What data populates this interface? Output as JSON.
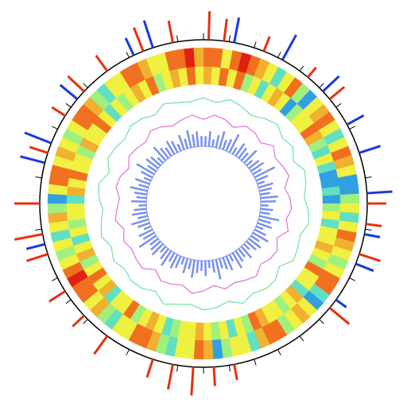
{
  "chart_data": [
    {
      "type": "ring",
      "xlim": [
        0,
        100
      ],
      "xticks": [
        0,
        2.5,
        5,
        7.5,
        10,
        12.5,
        15,
        17.5,
        20,
        22.5,
        25,
        27.5,
        30,
        32.5,
        35,
        37.5,
        40,
        42.5,
        45,
        47.5,
        50,
        52.5,
        55,
        57.5,
        60,
        62.5,
        65,
        67.5,
        70,
        72.5,
        75,
        77.5,
        80,
        82.5,
        85,
        87.5,
        90,
        92.5,
        95,
        97.5
      ],
      "color": "#000000"
    },
    {
      "type": "spike",
      "xlim": [
        0,
        100
      ],
      "ylim": [
        0,
        1
      ],
      "color": "#e83010",
      "x": [
        0.5,
        2,
        6,
        11,
        14,
        25,
        27,
        30,
        36,
        47,
        49,
        51,
        53,
        55,
        60,
        63,
        66,
        70,
        72,
        75,
        80,
        84,
        87,
        90,
        94,
        97
      ],
      "values": [
        0.9,
        0.7,
        0.5,
        0.4,
        0.6,
        0.6,
        0.5,
        0.7,
        0.8,
        0.5,
        0.6,
        0.9,
        0.8,
        0.6,
        0.7,
        0.5,
        0.6,
        0.7,
        0.9,
        0.8,
        0.6,
        0.5,
        0.7,
        0.6,
        0.8,
        0.7
      ]
    },
    {
      "type": "spike",
      "xlim": [
        0,
        100
      ],
      "ylim": [
        0,
        1
      ],
      "color": "#1838e0",
      "x": [
        3,
        8,
        13,
        17,
        20,
        24,
        28,
        31,
        35,
        71,
        79,
        81,
        86,
        93,
        95
      ],
      "values": [
        0.8,
        0.9,
        0.7,
        0.6,
        0.7,
        0.8,
        0.5,
        0.6,
        0.4,
        0.6,
        0.8,
        0.9,
        0.7,
        0.6,
        0.9
      ]
    },
    {
      "type": "heatmap",
      "xlim": [
        0,
        100
      ],
      "ylim": [
        0,
        1
      ],
      "colors": [
        "#2040d0",
        "#30a0e0",
        "#60e0c0",
        "#a0f080",
        "#f0f040",
        "#f0b030",
        "#f07020",
        "#e02010"
      ],
      "values": [
        0.9,
        0.8,
        0.6,
        0.9,
        1,
        0.9,
        0.7,
        0.5,
        0.3,
        0.6,
        0.8,
        0.4,
        0.2,
        0.5,
        0.7,
        0.9,
        0.6,
        0.3,
        0.5,
        0.8,
        0.7,
        0.6,
        0.2,
        0.1,
        0.4,
        0.5,
        0.3,
        0.6,
        0.8,
        0.7,
        0.5,
        0.4,
        0.6,
        0.9,
        0.8,
        0.3,
        0.2,
        0.5,
        0.7,
        0.6,
        0.4,
        0.8,
        0.9,
        0.7,
        0.3,
        0.5,
        0.6,
        0.4,
        0.2,
        0.7,
        0.8,
        0.6,
        0.5,
        0.3,
        0.4,
        0.7,
        0.9,
        0.8,
        0.5,
        0.6,
        0.3,
        0.4,
        0.7,
        0.5,
        0.8,
        0.9,
        1,
        0.8,
        0.6,
        0.4,
        0.5,
        0.3,
        0.6,
        0.7,
        0.4,
        0.2,
        0.5,
        0.8,
        0.9,
        0.6,
        0.7,
        0.5,
        0.4,
        0.6,
        0.8,
        0.9,
        0.7,
        0.4,
        0.3,
        0.5,
        0.6,
        0.8,
        0.9,
        0.7,
        0.5,
        0.6,
        0.8,
        0.9,
        1,
        0.7
      ]
    },
    {
      "type": "heatmap",
      "xlim": [
        0,
        100
      ],
      "ylim": [
        0,
        1
      ],
      "colors": [
        "#2040d0",
        "#30a0e0",
        "#60e0c0",
        "#a0f080",
        "#f0f040",
        "#f0b030",
        "#f07020",
        "#e02010"
      ],
      "values": [
        0.7,
        0.5,
        0.8,
        0.6,
        0.9,
        0.4,
        0.6,
        0.3,
        0.5,
        0.7,
        0.6,
        0.2,
        0.4,
        0.6,
        0.5,
        0.8,
        0.7,
        0.4,
        0.3,
        0.6,
        0.3,
        0.2,
        0.1,
        0.3,
        0.2,
        0.4,
        0.5,
        0.3,
        0.6,
        0.5,
        0.7,
        0.6,
        0.4,
        0.8,
        0.5,
        0.6,
        0.3,
        0.7,
        0.5,
        0.4,
        0.6,
        0.5,
        0.7,
        0.8,
        0.4,
        0.6,
        0.3,
        0.5,
        0.4,
        0.6,
        0.7,
        0.5,
        0.6,
        0.4,
        0.3,
        0.5,
        0.7,
        0.6,
        0.4,
        0.8,
        0.5,
        0.6,
        0.3,
        0.7,
        0.6,
        0.8,
        0.5,
        0.4,
        0.7,
        0.6,
        0.3,
        0.5,
        0.4,
        0.6,
        0.5,
        0.3,
        0.7,
        0.6,
        0.8,
        0.5,
        0.6,
        0.4,
        0.7,
        0.5,
        0.6,
        0.8,
        0.5,
        0.3,
        0.6,
        0.4,
        0.5,
        0.7,
        0.6,
        0.8,
        0.4,
        0.5,
        0.7,
        0.6,
        0.9,
        0.5
      ]
    },
    {
      "type": "line",
      "xlim": [
        0,
        100
      ],
      "ylim": [
        -1,
        1
      ],
      "color": "#70e0a0",
      "x": [
        0,
        2,
        4,
        6,
        8,
        10,
        12,
        14,
        16,
        18,
        20,
        22,
        24,
        26,
        28,
        30,
        32,
        34,
        36,
        38,
        40,
        42,
        44,
        46,
        48,
        50,
        52,
        54,
        56,
        58,
        60,
        62,
        64,
        66,
        68,
        70,
        72,
        74,
        76,
        78,
        80,
        82,
        84,
        86,
        88,
        90,
        92,
        94,
        96,
        98
      ],
      "values": [
        0.3,
        -0.2,
        0.5,
        0.1,
        -0.4,
        0.2,
        0.6,
        -0.1,
        0.3,
        -0.5,
        0.4,
        0.1,
        -0.3,
        0.2,
        0.5,
        -0.2,
        0.1,
        0.4,
        -0.6,
        0.2,
        0.3,
        -0.1,
        0.5,
        -0.3,
        0.2,
        0.4,
        -0.2,
        0.1,
        0.6,
        -0.4,
        0.2,
        0.3,
        -0.1,
        0.4,
        -0.2,
        0.5,
        0.1,
        -0.3,
        0.2,
        0.4,
        -0.5,
        0.3,
        0.1,
        -0.2,
        0.4,
        0.2,
        -0.3,
        0.5,
        0.1,
        -0.1
      ]
    },
    {
      "type": "line",
      "xlim": [
        0,
        100
      ],
      "ylim": [
        -1,
        1
      ],
      "color": "#e070d8",
      "x": [
        0,
        2,
        4,
        6,
        8,
        10,
        12,
        14,
        16,
        18,
        20,
        22,
        24,
        26,
        28,
        30,
        32,
        34,
        36,
        38,
        40,
        42,
        44,
        46,
        48,
        50,
        52,
        54,
        56,
        58,
        60,
        62,
        64,
        66,
        68,
        70,
        72,
        74,
        76,
        78,
        80,
        82,
        84,
        86,
        88,
        90,
        92,
        94,
        96,
        98
      ],
      "values": [
        -0.2,
        0.4,
        0.1,
        -0.5,
        0.3,
        0.2,
        -0.3,
        0.6,
        -0.1,
        0.2,
        0.5,
        -0.4,
        0.1,
        0.3,
        -0.2,
        0.4,
        -0.6,
        0.2,
        0.1,
        -0.3,
        0.5,
        0.2,
        -0.1,
        0.3,
        -0.4,
        0.2,
        0.6,
        -0.2,
        0.1,
        0.3,
        -0.5,
        0.4,
        0.2,
        -0.1,
        0.3,
        -0.3,
        0.5,
        0.1,
        -0.2,
        0.4,
        0.2,
        -0.4,
        0.3,
        0.1,
        -0.2,
        0.5,
        0.2,
        -0.3,
        0.1,
        0.4
      ]
    },
    {
      "type": "area",
      "xlim": [
        0,
        100
      ],
      "ylim": [
        0,
        1
      ],
      "color": "#7890f0",
      "values": [
        0.4,
        0.6,
        0.3,
        0.5,
        0.7,
        0.4,
        0.5,
        0.8,
        0.3,
        0.6,
        0.5,
        0.4,
        0.7,
        0.3,
        0.5,
        0.6,
        0.4,
        0.9,
        0.5,
        0.3,
        0.6,
        0.5,
        0.4,
        0.7,
        0.6,
        0.3,
        0.5,
        0.4,
        0.8,
        0.5,
        0.6,
        0.3,
        0.5,
        0.7,
        0.4,
        0.6,
        0.5,
        0.3,
        0.6,
        0.4,
        0.5,
        0.7,
        0.3,
        0.6,
        0.5,
        0.4,
        0.8,
        0.5,
        0.3,
        0.6,
        0.4,
        0.5,
        0.7,
        0.4,
        0.6,
        0.3,
        0.5,
        0.6,
        0.4,
        0.7,
        0.5,
        0.3,
        0.6,
        0.5,
        0.4,
        0.8,
        0.5,
        0.6,
        0.3,
        0.5,
        0.7,
        0.4,
        0.6,
        0.5,
        0.3,
        0.6,
        0.4,
        0.5,
        0.7,
        0.4,
        0.6,
        0.3,
        0.5,
        0.8,
        0.4,
        0.6,
        0.5,
        0.3,
        0.7,
        0.5,
        0.4,
        0.6,
        0.5,
        0.3,
        0.6,
        0.4,
        0.7,
        0.5,
        0.6,
        0.4
      ]
    }
  ]
}
